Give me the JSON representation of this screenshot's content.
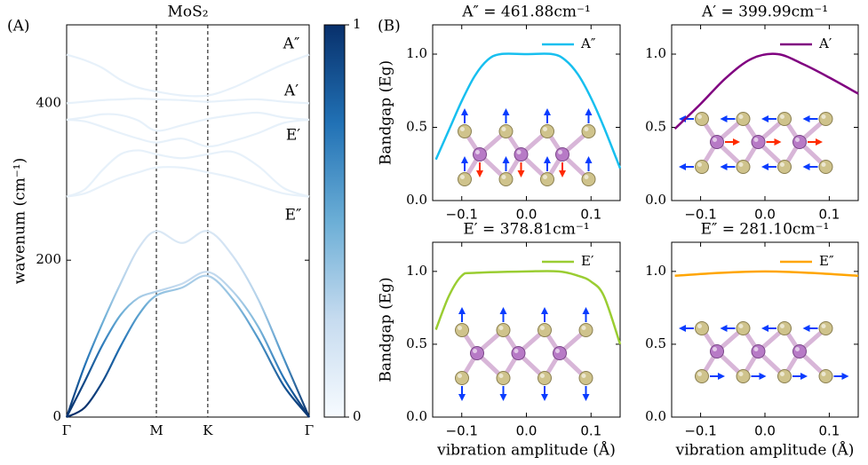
{
  "chart_data": [
    {
      "type": "dispersion",
      "panel_label": "(A)",
      "title": "MoS₂",
      "ylabel": "wavenum (cm⁻¹)",
      "x": [
        0,
        0.074,
        0.148,
        0.222,
        0.296,
        0.37,
        0.476,
        0.582,
        0.686,
        0.79,
        0.895,
        1.0
      ],
      "xlim": [
        0,
        1
      ],
      "xticks": [
        {
          "value": 0,
          "label": "Γ"
        },
        {
          "value": 0.37,
          "label": "M"
        },
        {
          "value": 0.582,
          "label": "K"
        },
        {
          "value": 1,
          "label": "Γ"
        }
      ],
      "ylim": [
        0,
        500
      ],
      "yticks": [
        0,
        200,
        400
      ],
      "cmap": [
        "#f7fbff",
        "#c6dbef",
        "#6baed6",
        "#2171b5",
        "#08306b"
      ],
      "colorbar": {
        "lim": [
          0,
          1
        ],
        "ticks": [
          0,
          1
        ]
      },
      "annotations": [
        "A″",
        "A′",
        "E′",
        "E″"
      ],
      "series": [
        {
          "values": [
            0,
            12,
            45,
            90,
            130,
            155,
            165,
            180,
            150,
            100,
            40,
            0
          ],
          "weights": [
            1,
            1,
            0.9,
            0.75,
            0.55,
            0.4,
            0.35,
            0.3,
            0.4,
            0.6,
            0.85,
            1
          ]
        },
        {
          "values": [
            0,
            45,
            92,
            130,
            152,
            160,
            170,
            185,
            160,
            115,
            50,
            0
          ],
          "weights": [
            1,
            0.9,
            0.7,
            0.5,
            0.35,
            0.3,
            0.25,
            0.25,
            0.3,
            0.45,
            0.75,
            1
          ]
        },
        {
          "values": [
            0,
            65,
            120,
            170,
            215,
            237,
            222,
            237,
            205,
            150,
            75,
            0
          ],
          "weights": [
            1,
            0.75,
            0.5,
            0.3,
            0.2,
            0.15,
            0.15,
            0.15,
            0.2,
            0.3,
            0.6,
            1
          ]
        },
        {
          "values": [
            281,
            285,
            295,
            305,
            312,
            318,
            318,
            312,
            305,
            295,
            285,
            281
          ],
          "weights": [
            0.08,
            0.08,
            0.08,
            0.08,
            0.08,
            0.08,
            0.08,
            0.08,
            0.08,
            0.08,
            0.08,
            0.08
          ]
        },
        {
          "values": [
            281,
            290,
            315,
            335,
            340,
            335,
            330,
            335,
            338,
            320,
            292,
            281
          ],
          "weights": [
            0.08,
            0.08,
            0.08,
            0.08,
            0.08,
            0.08,
            0.08,
            0.08,
            0.08,
            0.08,
            0.08,
            0.08
          ]
        },
        {
          "values": [
            379,
            377,
            370,
            362,
            355,
            350,
            355,
            345,
            352,
            362,
            375,
            379
          ],
          "weights": [
            0.08,
            0.08,
            0.08,
            0.08,
            0.08,
            0.08,
            0.08,
            0.08,
            0.08,
            0.08,
            0.08,
            0.08
          ]
        },
        {
          "values": [
            379,
            382,
            386,
            385,
            378,
            365,
            372,
            380,
            385,
            388,
            382,
            379
          ],
          "weights": [
            0.08,
            0.08,
            0.08,
            0.08,
            0.08,
            0.08,
            0.08,
            0.08,
            0.08,
            0.08,
            0.08,
            0.08
          ]
        },
        {
          "values": [
            400,
            402,
            404,
            405,
            406,
            405,
            404,
            402,
            404,
            405,
            402,
            400
          ],
          "weights": [
            0.08,
            0.08,
            0.08,
            0.08,
            0.08,
            0.08,
            0.08,
            0.08,
            0.08,
            0.08,
            0.08,
            0.08
          ]
        },
        {
          "values": [
            462,
            455,
            445,
            430,
            420,
            415,
            410,
            410,
            420,
            435,
            450,
            462
          ],
          "weights": [
            0.08,
            0.08,
            0.08,
            0.08,
            0.08,
            0.08,
            0.08,
            0.08,
            0.08,
            0.08,
            0.08,
            0.08
          ]
        }
      ]
    },
    {
      "type": "line",
      "panel_label": "(B)",
      "title": "A″ = 461.88cm⁻¹",
      "ylabel": "Bandgap (Eg)",
      "x": [
        -0.14,
        -0.12,
        -0.1,
        -0.08,
        -0.06,
        -0.04,
        0,
        0.04,
        0.06,
        0.08,
        0.1,
        0.12,
        0.145
      ],
      "series": [
        {
          "name": "A″",
          "color": "#17bfef",
          "values": [
            0.28,
            0.48,
            0.68,
            0.85,
            0.96,
            1.0,
            1.0,
            1.0,
            0.96,
            0.86,
            0.7,
            0.5,
            0.22
          ]
        }
      ],
      "xlim": [
        -0.145,
        0.145
      ],
      "ylim": [
        0,
        1.2
      ],
      "xticks": [
        {
          "value": -0.1,
          "label": "−0.1"
        },
        {
          "value": 0,
          "label": "0.0"
        },
        {
          "value": 0.1,
          "label": "0.1"
        }
      ],
      "yticks": [
        {
          "value": 0,
          "label": "0.0"
        },
        {
          "value": 0.5,
          "label": "0.5"
        },
        {
          "value": 1,
          "label": "1.0"
        }
      ],
      "legend": "upper right"
    },
    {
      "type": "line",
      "title": "A′ = 399.99cm⁻¹",
      "x": [
        -0.14,
        -0.1,
        -0.06,
        -0.02,
        0.02,
        0.06,
        0.1,
        0.145
      ],
      "series": [
        {
          "name": "A′",
          "color": "#800080",
          "values": [
            0.49,
            0.66,
            0.84,
            0.97,
            1.0,
            0.93,
            0.84,
            0.73
          ]
        }
      ],
      "xlim": [
        -0.145,
        0.145
      ],
      "ylim": [
        0,
        1.2
      ],
      "xticks": [
        {
          "value": -0.1,
          "label": "−0.1"
        },
        {
          "value": 0,
          "label": "0.0"
        },
        {
          "value": 0.1,
          "label": "0.1"
        }
      ],
      "yticks": [
        {
          "value": 0,
          "label": "0.0"
        },
        {
          "value": 0.5,
          "label": "0.5"
        },
        {
          "value": 1,
          "label": "1.0"
        }
      ],
      "legend": "upper right"
    },
    {
      "type": "line",
      "title": "E′ = 378.81cm⁻¹",
      "ylabel": "Bandgap (Eg)",
      "xlabel": "vibration amplitude (Å)",
      "x": [
        -0.14,
        -0.12,
        -0.1,
        -0.08,
        0,
        0.05,
        0.08,
        0.1,
        0.12,
        0.145
      ],
      "series": [
        {
          "name": "E′",
          "color": "#9acd32",
          "values": [
            0.6,
            0.83,
            0.97,
            0.99,
            1.0,
            1.0,
            0.97,
            0.93,
            0.83,
            0.5
          ]
        }
      ],
      "xlim": [
        -0.145,
        0.145
      ],
      "ylim": [
        0,
        1.2
      ],
      "xticks": [
        {
          "value": -0.1,
          "label": "−0.1"
        },
        {
          "value": 0,
          "label": "0.0"
        },
        {
          "value": 0.1,
          "label": "0.1"
        }
      ],
      "yticks": [
        {
          "value": 0,
          "label": "0.0"
        },
        {
          "value": 0.5,
          "label": "0.5"
        },
        {
          "value": 1,
          "label": "1.0"
        }
      ],
      "legend": "upper right"
    },
    {
      "type": "line",
      "title": "E″ = 281.10cm⁻¹",
      "xlabel": "vibration amplitude (Å)",
      "x": [
        -0.14,
        -0.07,
        0,
        0.07,
        0.145
      ],
      "series": [
        {
          "name": "E″",
          "color": "#ffa500",
          "values": [
            0.97,
            0.99,
            1.0,
            0.99,
            0.97
          ]
        }
      ],
      "xlim": [
        -0.145,
        0.145
      ],
      "ylim": [
        0,
        1.2
      ],
      "xticks": [
        {
          "value": -0.1,
          "label": "−0.1"
        },
        {
          "value": 0,
          "label": "0.0"
        },
        {
          "value": 0.1,
          "label": "0.1"
        }
      ],
      "yticks": [
        {
          "value": 0,
          "label": "0.0"
        },
        {
          "value": 0.5,
          "label": "0.5"
        },
        {
          "value": 1,
          "label": "1.0"
        }
      ],
      "legend": "upper right"
    }
  ]
}
